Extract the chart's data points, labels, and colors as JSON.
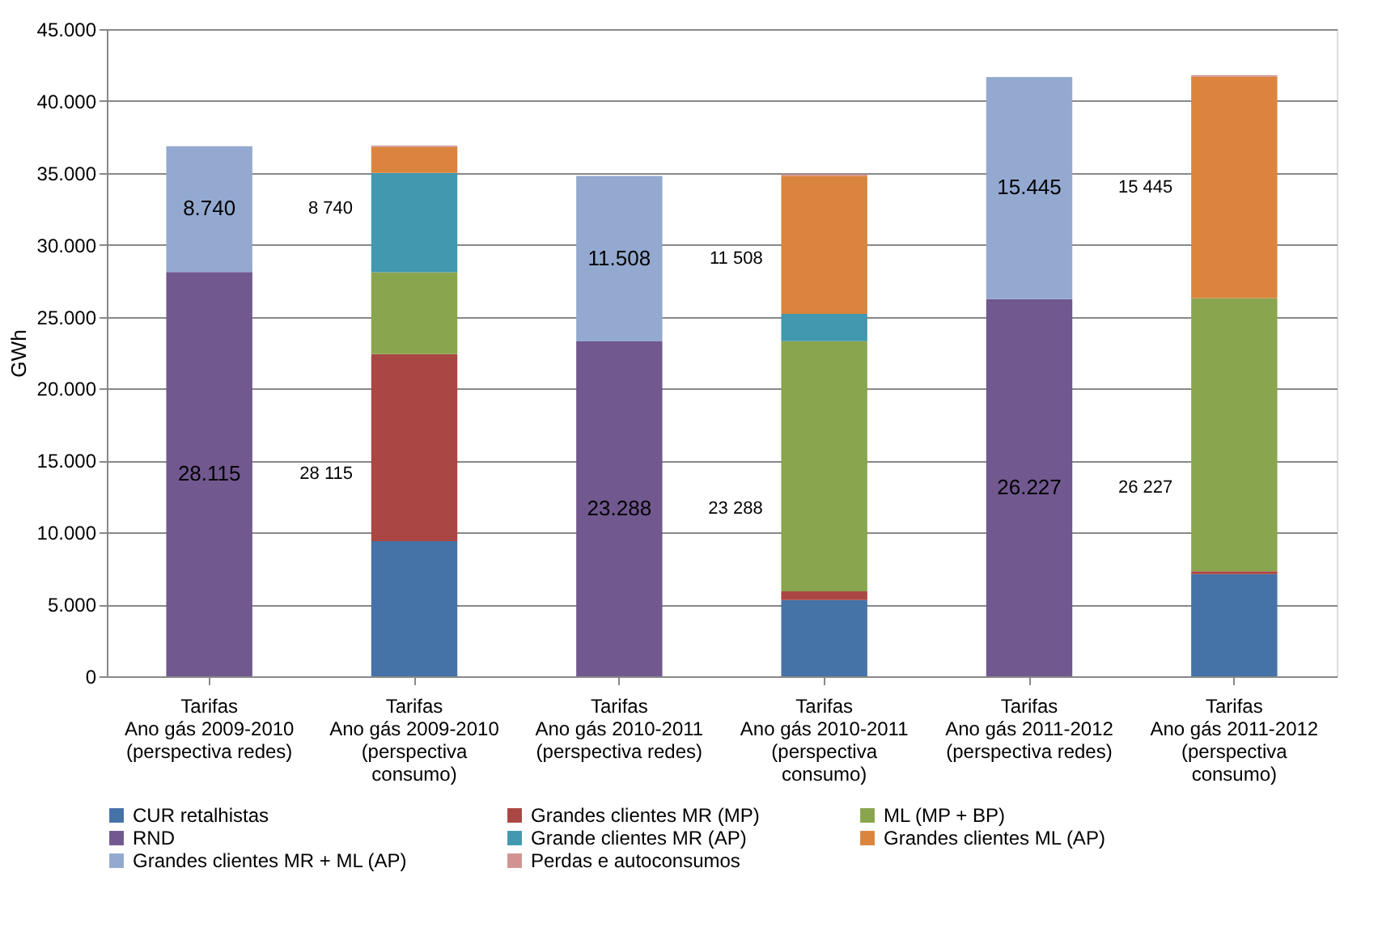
{
  "chart_data": {
    "type": "bar",
    "stacked": true,
    "ylabel": "GWh",
    "categories": [
      "Tarifas\nAno gás 2009-2010\n(perspectiva redes)",
      "Tarifas\nAno gás 2009-2010\n(perspectiva\nconsumo)",
      "Tarifas\nAno gás 2010-2011\n(perspectiva redes)",
      "Tarifas\nAno gás 2010-2011\n(perspectiva\nconsumo)",
      "Tarifas\nAno gás 2011-2012\n(perspectiva redes)",
      "Tarifas\nAno gás 2011-2012\n(perspectiva\nconsumo)"
    ],
    "series": [
      {
        "name": "CUR retalhistas",
        "color": "#4572a7",
        "values": [
          null,
          9400,
          null,
          5300,
          null,
          7100
        ]
      },
      {
        "name": "Grandes clientes MR (MP)",
        "color": "#aa4643",
        "values": [
          null,
          13000,
          null,
          600,
          null,
          200
        ]
      },
      {
        "name": "ML (MP + BP)",
        "color": "#89a54e",
        "values": [
          null,
          5700,
          null,
          17400,
          null,
          19000
        ]
      },
      {
        "name": "RND",
        "color": "#71588f",
        "values": [
          28115,
          null,
          23288,
          null,
          26227,
          null
        ],
        "value_labels": [
          "28.115",
          null,
          "23.288",
          null,
          "26.227",
          null
        ]
      },
      {
        "name": "Grande clientes MR (AP)",
        "color": "#4198af",
        "values": [
          null,
          6900,
          null,
          1900,
          null,
          null
        ]
      },
      {
        "name": "Grandes clientes ML (AP)",
        "color": "#db843d",
        "values": [
          null,
          1800,
          null,
          9600,
          null,
          15400
        ]
      },
      {
        "name": "Grandes clientes MR + ML (AP)",
        "color": "#93a9cf",
        "values": [
          8740,
          null,
          11508,
          null,
          15445,
          null
        ],
        "value_labels": [
          "8.740",
          null,
          "11.508",
          null,
          "15.445",
          null
        ]
      },
      {
        "name": "Perdas e autoconsumos",
        "color": "#d19392",
        "values": [
          null,
          100,
          null,
          100,
          null,
          100
        ]
      }
    ],
    "ylim": [
      0,
      45000
    ],
    "yticks": [
      {
        "value": 0,
        "label": "0"
      },
      {
        "value": 5000,
        "label": "5.000"
      },
      {
        "value": 10000,
        "label": "10.000"
      },
      {
        "value": 15000,
        "label": "15.000"
      },
      {
        "value": 20000,
        "label": "20.000"
      },
      {
        "value": 25000,
        "label": "25.000"
      },
      {
        "value": 30000,
        "label": "30.000"
      },
      {
        "value": 35000,
        "label": "35.000"
      },
      {
        "value": 40000,
        "label": "40.000"
      },
      {
        "value": 45000,
        "label": "45.000"
      }
    ],
    "grid": "y",
    "legend": "bottom",
    "annotations": [
      "8 740",
      "28 115",
      "11 508",
      "23 288",
      "15 445",
      "26 227"
    ]
  }
}
